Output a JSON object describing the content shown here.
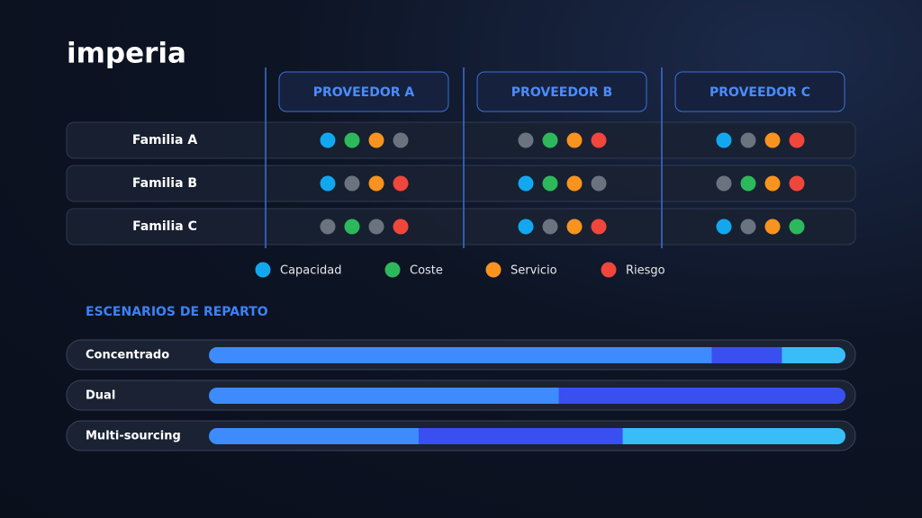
{
  "brand": "imperia",
  "columns": [
    "PROVEEDOR A",
    "PROVEEDOR B",
    "PROVEEDOR C"
  ],
  "rows": [
    {
      "label": "Familia A",
      "cells": [
        [
          "#12a8f0",
          "#2eb85c",
          "#f7931e",
          "#6b7280"
        ],
        [
          "#6b7280",
          "#2eb85c",
          "#f7931e",
          "#f0463c"
        ],
        [
          "#12a8f0",
          "#6b7280",
          "#f7931e",
          "#f0463c"
        ]
      ]
    },
    {
      "label": "Familia B",
      "cells": [
        [
          "#12a8f0",
          "#6b7280",
          "#f7931e",
          "#f0463c"
        ],
        [
          "#12a8f0",
          "#2eb85c",
          "#f7931e",
          "#6b7280"
        ],
        [
          "#6b7280",
          "#2eb85c",
          "#f7931e",
          "#f0463c"
        ]
      ]
    },
    {
      "label": "Familia C",
      "cells": [
        [
          "#6b7280",
          "#2eb85c",
          "#6b7280",
          "#f0463c"
        ],
        [
          "#12a8f0",
          "#6b7280",
          "#f7931e",
          "#f0463c"
        ],
        [
          "#12a8f0",
          "#6b7280",
          "#f7931e",
          "#2eb85c"
        ]
      ]
    }
  ],
  "legend": [
    {
      "name": "Capacidad",
      "color": "#12a8f0"
    },
    {
      "name": "Coste",
      "color": "#2eb85c"
    },
    {
      "name": "Servicio",
      "color": "#f7931e"
    },
    {
      "name": "Riesgo",
      "color": "#f0463c"
    }
  ],
  "scenarios_title": "ESCENARIOS DE REPARTO",
  "scenarios": [
    {
      "label": "Concentrado",
      "values": [
        79,
        11,
        10
      ],
      "colors": [
        "#3d8bfd",
        "#3a4ff0",
        "#38bdf8"
      ]
    },
    {
      "label": "Dual",
      "values": [
        55,
        45
      ],
      "colors": [
        "#3d8bfd",
        "#3a4ff0"
      ]
    },
    {
      "label": "Multi-sourcing",
      "values": [
        33,
        32,
        35
      ],
      "colors": [
        "#3d8bfd",
        "#3a4ff0",
        "#38bdf8"
      ]
    }
  ]
}
